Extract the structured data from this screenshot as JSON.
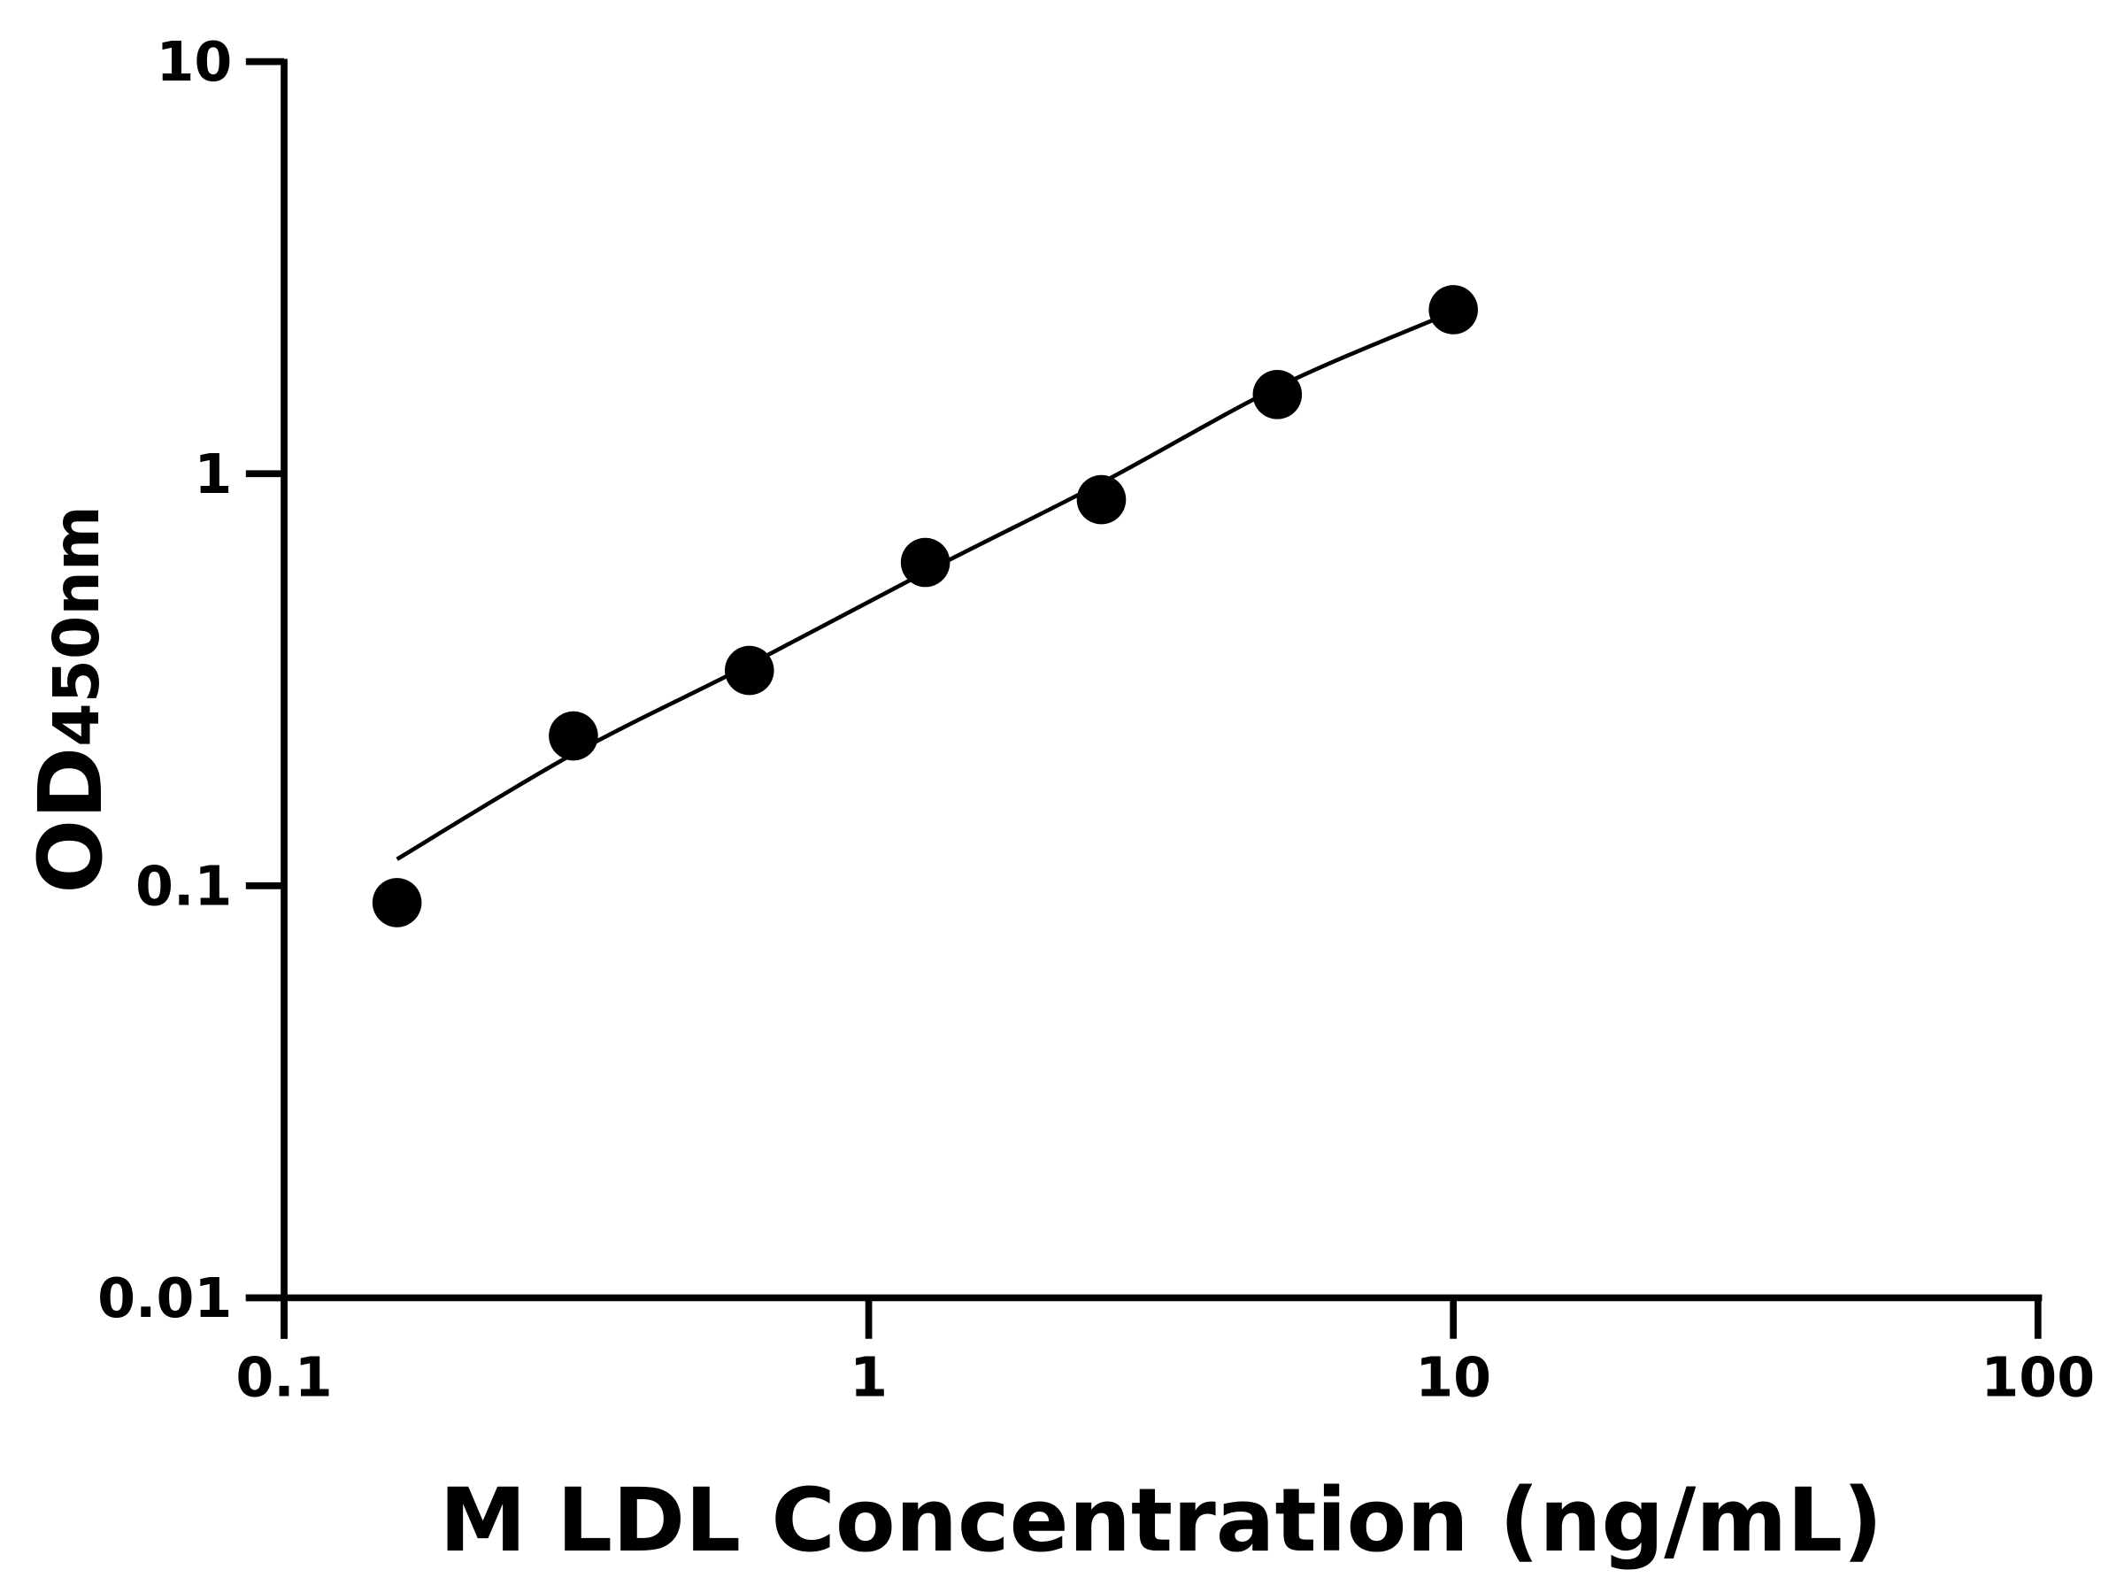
{
  "chart_data": {
    "type": "scatter",
    "title": "",
    "xlabel": "M LDL Concentration (ng/mL)",
    "ylabel": {
      "main": "OD",
      "subscript": "450nm"
    },
    "xscale": "log",
    "yscale": "log",
    "xlim": [
      0.1,
      100
    ],
    "ylim": [
      0.01,
      10
    ],
    "x_ticks": [
      {
        "value": 0.1,
        "label": "0.1"
      },
      {
        "value": 1,
        "label": "1"
      },
      {
        "value": 10,
        "label": "10"
      },
      {
        "value": 100,
        "label": "100"
      }
    ],
    "y_ticks": [
      {
        "value": 0.01,
        "label": "0.01"
      },
      {
        "value": 0.1,
        "label": "0.1"
      },
      {
        "value": 1,
        "label": "1"
      },
      {
        "value": 10,
        "label": "10"
      }
    ],
    "grid": false,
    "legend": "none",
    "series": [
      {
        "points": [
          {
            "x": 0.156,
            "y": 0.091
          },
          {
            "x": 0.3125,
            "y": 0.231
          },
          {
            "x": 0.625,
            "y": 0.333
          },
          {
            "x": 1.25,
            "y": 0.609
          },
          {
            "x": 2.5,
            "y": 0.865
          },
          {
            "x": 5,
            "y": 1.556
          },
          {
            "x": 10,
            "y": 2.5
          }
        ],
        "color": "#000000"
      }
    ],
    "fit_curve": {
      "color": "#000000",
      "points": [
        {
          "x": 0.156,
          "y": 0.116
        },
        {
          "x": 0.3125,
          "y": 0.209
        },
        {
          "x": 0.625,
          "y": 0.344
        },
        {
          "x": 1.25,
          "y": 0.577
        },
        {
          "x": 2.5,
          "y": 0.95
        },
        {
          "x": 5,
          "y": 1.62
        },
        {
          "x": 9.3,
          "y": 2.37
        }
      ]
    }
  }
}
